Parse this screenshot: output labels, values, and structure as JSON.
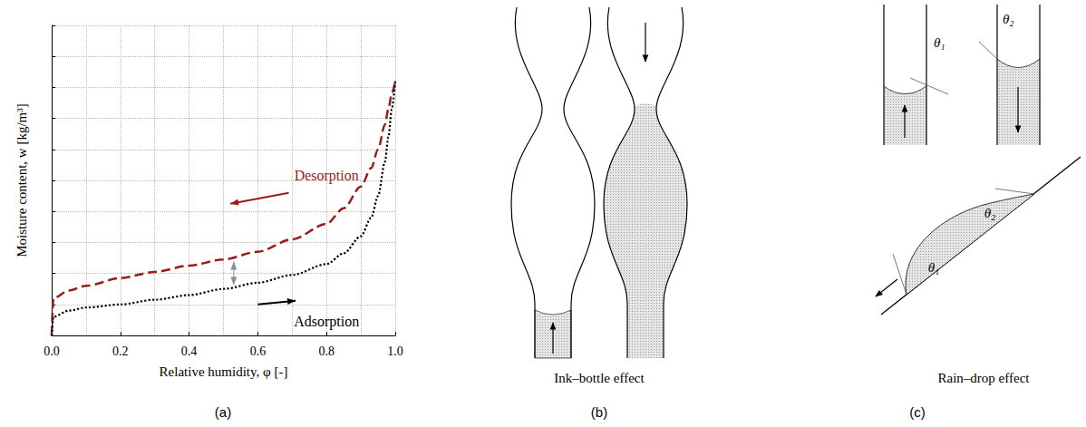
{
  "chart_data": {
    "type": "line",
    "x_label": "Relative humidity, φ [-]",
    "y_label": "Moisture content, w [kg/m³]",
    "x": [
      0,
      0.005,
      0.05,
      0.1,
      0.2,
      0.3,
      0.4,
      0.5,
      0.6,
      0.7,
      0.8,
      0.85,
      0.9,
      0.93,
      0.95,
      0.97,
      0.98,
      0.99,
      1.0
    ],
    "series": [
      {
        "name": "Desorption",
        "color": "#9b1b1b",
        "line_style": "dashed",
        "values": [
          0,
          1.2,
          1.45,
          1.6,
          1.85,
          2.05,
          2.25,
          2.45,
          2.7,
          3.1,
          3.6,
          4.1,
          4.8,
          5.4,
          6.0,
          6.8,
          7.3,
          7.8,
          8.2
        ]
      },
      {
        "name": "Adsorption",
        "color": "#000000",
        "line_style": "dotted",
        "values": [
          0,
          0.6,
          0.8,
          0.9,
          1.0,
          1.15,
          1.3,
          1.5,
          1.7,
          1.95,
          2.3,
          2.65,
          3.2,
          3.8,
          4.5,
          5.6,
          6.4,
          7.3,
          8.2
        ]
      }
    ],
    "xlim": [
      0,
      1
    ],
    "xticks": [
      {
        "value": 0,
        "label": "0.0"
      },
      0.2,
      0.4,
      0.6,
      0.8,
      {
        "value": 1,
        "label": "1.0"
      }
    ],
    "ylim": [
      0,
      10
    ],
    "yticks": [
      0,
      1,
      2,
      3,
      4,
      5,
      6,
      7,
      8,
      9,
      10
    ],
    "grid": true,
    "tick_labels": "x"
  },
  "panels": [
    "(a)",
    "(b)",
    "(c)"
  ],
  "ink_bottle": {
    "caption": "Ink–bottle effect"
  },
  "rain_drop": {
    "caption": "Rain–drop effect",
    "angles": [
      "θ₁",
      "θ₂"
    ]
  }
}
